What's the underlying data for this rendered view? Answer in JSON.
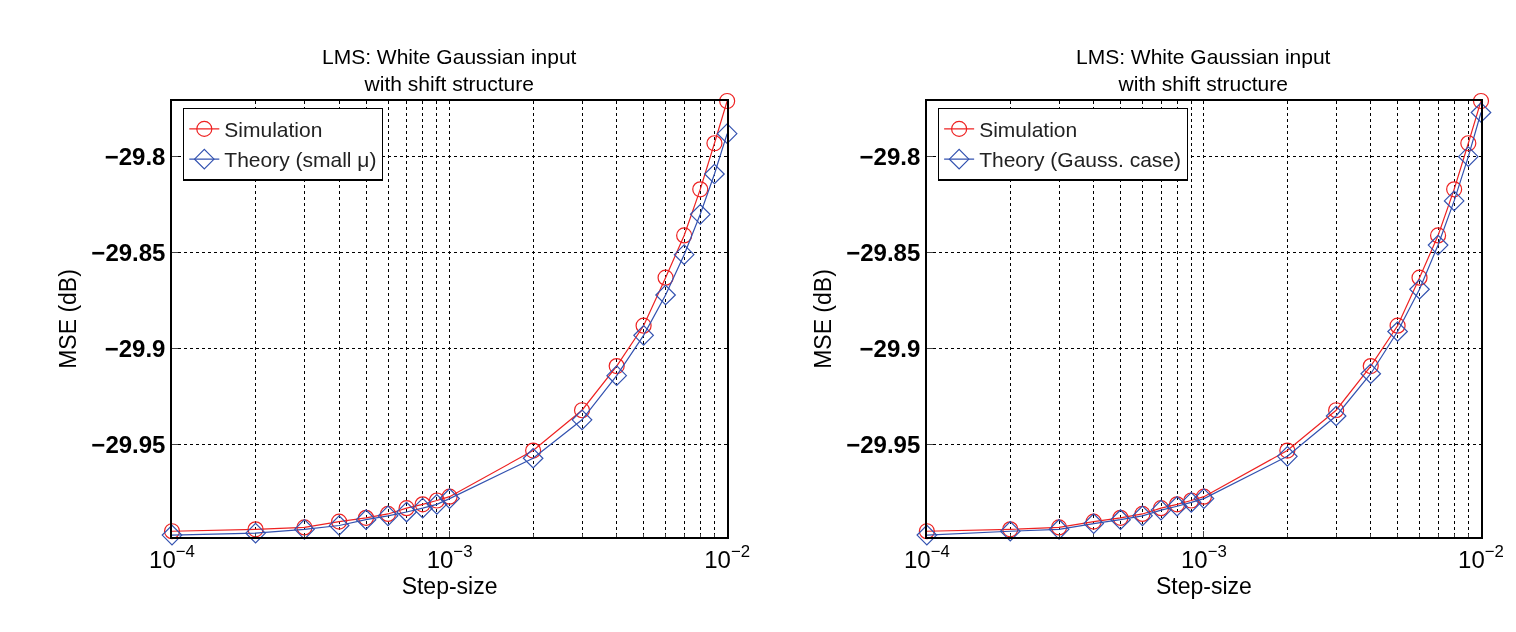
{
  "chart_data": [
    {
      "type": "line",
      "title": "LMS: White Gaussian input\nwith shift structure",
      "xlabel": "Step-size",
      "ylabel": "MSE (dB)",
      "log": "x",
      "grid": true,
      "legend": "top left",
      "x": [
        0.0001,
        0.0002,
        0.0003,
        0.0004,
        0.0005,
        0.0006,
        0.0007,
        0.0008,
        0.0009,
        0.001,
        0.002,
        0.003,
        0.004,
        0.005,
        0.006,
        0.007,
        0.008,
        0.009,
        0.01
      ],
      "xlim": [
        0.0001,
        0.01
      ],
      "xticks": [
        {
          "value": 0.0001,
          "label": "10$^{−4}$"
        },
        {
          "value": 0.001,
          "label": "10$^{−3}$"
        },
        {
          "value": 0.01,
          "label": "10$^{−2}$"
        }
      ],
      "ylim": [
        -29.998,
        -29.771
      ],
      "yticks": [
        {
          "value": -29.95,
          "label": "−29.95"
        },
        {
          "value": -29.9,
          "label": "−29.9"
        },
        {
          "value": -29.85,
          "label": "−29.85"
        },
        {
          "value": -29.8,
          "label": "−29.8"
        }
      ],
      "series": [
        {
          "name": "Simulation",
          "color": "#ee2222",
          "marker": "circle",
          "values": [
            -29.995,
            -29.994,
            -29.993,
            -29.99,
            -29.988,
            -29.986,
            -29.983,
            -29.981,
            -29.979,
            -29.977,
            -29.953,
            -29.932,
            -29.909,
            -29.888,
            -29.863,
            -29.841,
            -29.817,
            -29.793,
            -29.771
          ]
        },
        {
          "name": "Theory (small μ)",
          "color": "#3352b0",
          "marker": "diamond",
          "values": [
            -29.997,
            -29.996,
            -29.994,
            -29.992,
            -29.989,
            -29.987,
            -29.985,
            -29.983,
            -29.981,
            -29.978,
            -29.957,
            -29.937,
            -29.914,
            -29.893,
            -29.872,
            -29.851,
            -29.83,
            -29.809,
            -29.788
          ]
        }
      ]
    },
    {
      "type": "line",
      "title": "LMS: White Gaussian input\nwith shift structure",
      "xlabel": "Step-size",
      "ylabel": "MSE (dB)",
      "log": "x",
      "grid": true,
      "legend": "top left",
      "x": [
        0.0001,
        0.0002,
        0.0003,
        0.0004,
        0.0005,
        0.0006,
        0.0007,
        0.0008,
        0.0009,
        0.001,
        0.002,
        0.003,
        0.004,
        0.005,
        0.006,
        0.007,
        0.008,
        0.009,
        0.01
      ],
      "xlim": [
        0.0001,
        0.01
      ],
      "xticks": [
        {
          "value": 0.0001,
          "label": "10$^{−4}$"
        },
        {
          "value": 0.001,
          "label": "10$^{−3}$"
        },
        {
          "value": 0.01,
          "label": "10$^{−2}$"
        }
      ],
      "ylim": [
        -29.998,
        -29.771
      ],
      "yticks": [
        {
          "value": -29.95,
          "label": "−29.95"
        },
        {
          "value": -29.9,
          "label": "−29.9"
        },
        {
          "value": -29.85,
          "label": "−29.85"
        },
        {
          "value": -29.8,
          "label": "−29.8"
        }
      ],
      "series": [
        {
          "name": "Simulation",
          "color": "#ee2222",
          "marker": "circle",
          "values": [
            -29.995,
            -29.994,
            -29.993,
            -29.99,
            -29.988,
            -29.986,
            -29.983,
            -29.981,
            -29.979,
            -29.977,
            -29.953,
            -29.932,
            -29.909,
            -29.888,
            -29.863,
            -29.841,
            -29.817,
            -29.793,
            -29.771
          ]
        },
        {
          "name": "Theory (Gauss. case)",
          "color": "#3352b0",
          "marker": "diamond",
          "values": [
            -29.997,
            -29.995,
            -29.994,
            -29.991,
            -29.989,
            -29.987,
            -29.984,
            -29.982,
            -29.98,
            -29.978,
            -29.956,
            -29.935,
            -29.913,
            -29.891,
            -29.869,
            -29.846,
            -29.823,
            -29.8,
            -29.777
          ]
        }
      ]
    }
  ]
}
